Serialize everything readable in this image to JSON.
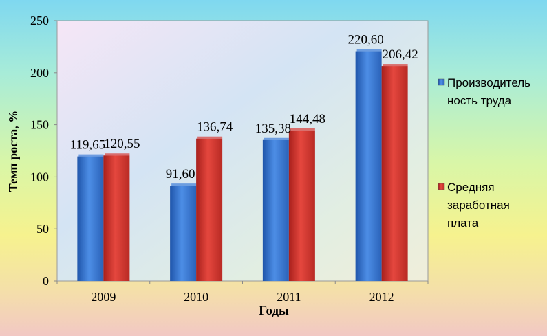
{
  "chart_data": {
    "type": "bar",
    "categories": [
      "2009",
      "2010",
      "2011",
      "2012"
    ],
    "series": [
      {
        "name": "Производитель ность труда",
        "name_lines": [
          "Производитель",
          "ность труда"
        ],
        "values": [
          119.65,
          91.6,
          135.38,
          220.6
        ],
        "labels": [
          "119,65",
          "91,60",
          "135,38",
          "220,60"
        ],
        "color": "#3f7ed8"
      },
      {
        "name": "Средняя заработная плата",
        "name_lines": [
          "Средняя",
          "заработная",
          "плата"
        ],
        "values": [
          120.55,
          136.74,
          144.48,
          206.42
        ],
        "labels": [
          "120,55",
          "136,74",
          "144,48",
          "206,42"
        ],
        "color": "#d83a34"
      }
    ],
    "xlabel": "Годы",
    "ylabel": "Темп роста, %",
    "ylim": [
      0,
      250
    ],
    "yticks": [
      0,
      50,
      100,
      150,
      200,
      250
    ],
    "grid": false,
    "legend_position": "right"
  }
}
